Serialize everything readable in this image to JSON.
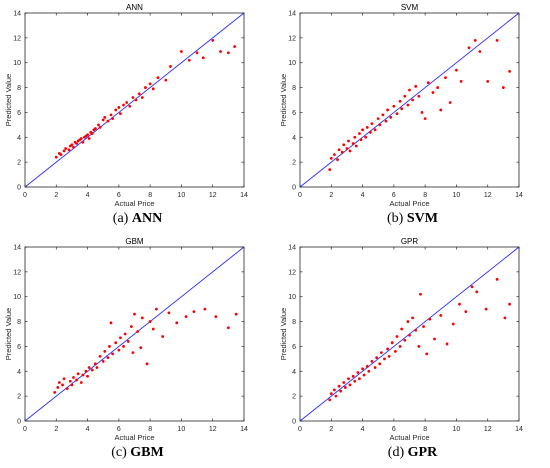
{
  "colors": {
    "points": "#ff0000",
    "diagonal": "#2b2bff",
    "axis": "#262626"
  },
  "chart_data": [
    {
      "type": "scatter",
      "title": "ANN",
      "caption_label": "(a)",
      "caption_name": "ANN",
      "xlabel": "Actual Price",
      "ylabel": "Predicted Value",
      "xlim": [
        0,
        14
      ],
      "ylim": [
        0,
        14
      ],
      "xticks": [
        "0",
        "2",
        "4",
        "6",
        "8",
        "10",
        "12",
        "14"
      ],
      "yticks": [
        "0",
        "2",
        "4",
        "6",
        "8",
        "10",
        "12",
        "14"
      ],
      "reference_line": [
        [
          0,
          0
        ],
        [
          14,
          14
        ]
      ],
      "points": [
        [
          2.0,
          2.4
        ],
        [
          2.2,
          2.7
        ],
        [
          2.3,
          2.6
        ],
        [
          2.5,
          2.9
        ],
        [
          2.6,
          3.1
        ],
        [
          2.8,
          3.0
        ],
        [
          2.9,
          3.3
        ],
        [
          3.0,
          3.4
        ],
        [
          3.1,
          3.2
        ],
        [
          3.2,
          3.6
        ],
        [
          3.3,
          3.5
        ],
        [
          3.4,
          3.7
        ],
        [
          3.5,
          3.8
        ],
        [
          3.6,
          3.9
        ],
        [
          3.7,
          3.6
        ],
        [
          3.8,
          4.0
        ],
        [
          3.9,
          4.1
        ],
        [
          4.0,
          4.2
        ],
        [
          4.1,
          3.9
        ],
        [
          4.2,
          4.4
        ],
        [
          4.3,
          4.3
        ],
        [
          4.4,
          4.6
        ],
        [
          4.5,
          4.7
        ],
        [
          4.7,
          5.0
        ],
        [
          4.8,
          4.8
        ],
        [
          5.0,
          5.4
        ],
        [
          5.1,
          5.6
        ],
        [
          5.3,
          5.3
        ],
        [
          5.5,
          5.8
        ],
        [
          5.6,
          5.5
        ],
        [
          5.8,
          6.2
        ],
        [
          6.0,
          6.4
        ],
        [
          6.1,
          5.9
        ],
        [
          6.3,
          6.6
        ],
        [
          6.5,
          6.8
        ],
        [
          6.7,
          6.5
        ],
        [
          6.9,
          7.2
        ],
        [
          7.1,
          7.0
        ],
        [
          7.3,
          7.5
        ],
        [
          7.5,
          7.2
        ],
        [
          7.7,
          8.0
        ],
        [
          8.0,
          8.3
        ],
        [
          8.2,
          7.9
        ],
        [
          8.5,
          8.8
        ],
        [
          9.0,
          8.6
        ],
        [
          9.3,
          9.7
        ],
        [
          10.0,
          10.9
        ],
        [
          10.5,
          10.2
        ],
        [
          11.0,
          10.8
        ],
        [
          11.4,
          10.4
        ],
        [
          12.0,
          11.8
        ],
        [
          12.5,
          10.9
        ],
        [
          13.0,
          10.8
        ],
        [
          13.4,
          11.3
        ]
      ]
    },
    {
      "type": "scatter",
      "title": "SVM",
      "caption_label": "(b)",
      "caption_name": "SVM",
      "xlabel": "Actual Price",
      "ylabel": "Predicted Value",
      "xlim": [
        0,
        14
      ],
      "ylim": [
        0,
        14
      ],
      "xticks": [
        "0",
        "2",
        "4",
        "6",
        "8",
        "10",
        "12",
        "14"
      ],
      "yticks": [
        "0",
        "2",
        "4",
        "6",
        "8",
        "10",
        "12",
        "14"
      ],
      "reference_line": [
        [
          0,
          0
        ],
        [
          14,
          14
        ]
      ],
      "points": [
        [
          1.9,
          1.4
        ],
        [
          2.0,
          2.3
        ],
        [
          2.2,
          2.6
        ],
        [
          2.4,
          2.2
        ],
        [
          2.5,
          3.0
        ],
        [
          2.7,
          2.8
        ],
        [
          2.8,
          3.4
        ],
        [
          3.0,
          3.1
        ],
        [
          3.1,
          3.7
        ],
        [
          3.2,
          2.9
        ],
        [
          3.4,
          3.5
        ],
        [
          3.5,
          4.0
        ],
        [
          3.6,
          3.3
        ],
        [
          3.8,
          4.3
        ],
        [
          3.9,
          3.8
        ],
        [
          4.0,
          4.6
        ],
        [
          4.2,
          4.0
        ],
        [
          4.3,
          4.8
        ],
        [
          4.5,
          4.4
        ],
        [
          4.6,
          5.1
        ],
        [
          4.8,
          4.6
        ],
        [
          5.0,
          5.5
        ],
        [
          5.1,
          5.0
        ],
        [
          5.3,
          5.8
        ],
        [
          5.5,
          5.3
        ],
        [
          5.6,
          6.2
        ],
        [
          5.8,
          5.6
        ],
        [
          6.0,
          6.5
        ],
        [
          6.2,
          5.9
        ],
        [
          6.4,
          6.9
        ],
        [
          6.5,
          6.3
        ],
        [
          6.7,
          7.3
        ],
        [
          6.9,
          6.6
        ],
        [
          7.0,
          7.8
        ],
        [
          7.2,
          7.0
        ],
        [
          7.4,
          8.1
        ],
        [
          7.6,
          7.3
        ],
        [
          7.8,
          6.0
        ],
        [
          8.0,
          5.5
        ],
        [
          8.2,
          8.4
        ],
        [
          8.5,
          7.6
        ],
        [
          8.8,
          8.0
        ],
        [
          9.0,
          6.2
        ],
        [
          9.3,
          8.8
        ],
        [
          9.6,
          6.8
        ],
        [
          10.0,
          9.4
        ],
        [
          10.3,
          8.5
        ],
        [
          10.8,
          11.2
        ],
        [
          11.2,
          11.8
        ],
        [
          11.5,
          10.9
        ],
        [
          12.0,
          8.5
        ],
        [
          12.6,
          11.8
        ],
        [
          13.0,
          8.0
        ],
        [
          13.4,
          9.3
        ]
      ]
    },
    {
      "type": "scatter",
      "title": "GBM",
      "caption_label": "(c)",
      "caption_name": "GBM",
      "xlabel": "Actual Price",
      "ylabel": "Predicted Value",
      "xlim": [
        0,
        14
      ],
      "ylim": [
        0,
        14
      ],
      "xticks": [
        "0",
        "2",
        "4",
        "6",
        "8",
        "10",
        "12",
        "14"
      ],
      "yticks": [
        "0",
        "2",
        "4",
        "6",
        "8",
        "10",
        "12",
        "14"
      ],
      "reference_line": [
        [
          0,
          0
        ],
        [
          14,
          14
        ]
      ],
      "points": [
        [
          1.9,
          2.3
        ],
        [
          2.1,
          2.7
        ],
        [
          2.2,
          3.1
        ],
        [
          2.4,
          2.9
        ],
        [
          2.5,
          3.4
        ],
        [
          2.7,
          2.6
        ],
        [
          2.9,
          3.2
        ],
        [
          3.0,
          2.9
        ],
        [
          3.1,
          3.5
        ],
        [
          3.3,
          3.3
        ],
        [
          3.4,
          3.8
        ],
        [
          3.6,
          3.1
        ],
        [
          3.7,
          3.7
        ],
        [
          3.9,
          4.0
        ],
        [
          4.0,
          3.6
        ],
        [
          4.1,
          4.3
        ],
        [
          4.3,
          4.1
        ],
        [
          4.5,
          4.6
        ],
        [
          4.6,
          4.3
        ],
        [
          4.8,
          5.2
        ],
        [
          5.0,
          4.8
        ],
        [
          5.1,
          5.6
        ],
        [
          5.3,
          5.1
        ],
        [
          5.4,
          6.0
        ],
        [
          5.5,
          7.9
        ],
        [
          5.6,
          5.4
        ],
        [
          5.8,
          6.3
        ],
        [
          6.0,
          5.7
        ],
        [
          6.1,
          6.7
        ],
        [
          6.3,
          6.0
        ],
        [
          6.4,
          7.0
        ],
        [
          6.6,
          6.4
        ],
        [
          6.8,
          7.6
        ],
        [
          6.9,
          5.5
        ],
        [
          7.0,
          8.6
        ],
        [
          7.2,
          7.2
        ],
        [
          7.4,
          5.9
        ],
        [
          7.5,
          8.3
        ],
        [
          7.8,
          4.6
        ],
        [
          8.0,
          8.0
        ],
        [
          8.2,
          7.4
        ],
        [
          8.4,
          9.0
        ],
        [
          8.8,
          6.8
        ],
        [
          9.2,
          8.7
        ],
        [
          9.7,
          7.9
        ],
        [
          10.3,
          8.4
        ],
        [
          10.8,
          8.8
        ],
        [
          11.5,
          9.0
        ],
        [
          12.2,
          8.4
        ],
        [
          13.0,
          7.5
        ],
        [
          13.5,
          8.6
        ]
      ]
    },
    {
      "type": "scatter",
      "title": "GPR",
      "caption_label": "(d)",
      "caption_name": "GPR",
      "xlabel": "Actual Price",
      "ylabel": "Predicted Value",
      "xlim": [
        0,
        14
      ],
      "ylim": [
        0,
        14
      ],
      "xticks": [
        "0",
        "2",
        "4",
        "6",
        "8",
        "10",
        "12",
        "14"
      ],
      "yticks": [
        "0",
        "2",
        "4",
        "6",
        "8",
        "10",
        "12",
        "14"
      ],
      "reference_line": [
        [
          0,
          0
        ],
        [
          14,
          14
        ]
      ],
      "points": [
        [
          1.9,
          1.7
        ],
        [
          2.0,
          2.2
        ],
        [
          2.2,
          2.5
        ],
        [
          2.3,
          2.0
        ],
        [
          2.5,
          2.8
        ],
        [
          2.6,
          2.4
        ],
        [
          2.8,
          3.1
        ],
        [
          2.9,
          2.7
        ],
        [
          3.1,
          3.4
        ],
        [
          3.2,
          2.9
        ],
        [
          3.4,
          3.6
        ],
        [
          3.5,
          3.2
        ],
        [
          3.7,
          3.9
        ],
        [
          3.8,
          3.4
        ],
        [
          4.0,
          4.2
        ],
        [
          4.1,
          3.7
        ],
        [
          4.3,
          4.4
        ],
        [
          4.4,
          4.0
        ],
        [
          4.6,
          4.8
        ],
        [
          4.8,
          4.3
        ],
        [
          4.9,
          5.1
        ],
        [
          5.1,
          4.6
        ],
        [
          5.2,
          5.5
        ],
        [
          5.4,
          5.0
        ],
        [
          5.6,
          5.8
        ],
        [
          5.7,
          5.2
        ],
        [
          5.9,
          6.3
        ],
        [
          6.1,
          5.6
        ],
        [
          6.2,
          6.8
        ],
        [
          6.4,
          6.0
        ],
        [
          6.5,
          7.4
        ],
        [
          6.7,
          6.5
        ],
        [
          6.9,
          8.0
        ],
        [
          7.0,
          6.9
        ],
        [
          7.2,
          8.3
        ],
        [
          7.4,
          7.3
        ],
        [
          7.6,
          6.0
        ],
        [
          7.7,
          10.2
        ],
        [
          7.9,
          7.6
        ],
        [
          8.1,
          5.4
        ],
        [
          8.3,
          8.2
        ],
        [
          8.6,
          6.6
        ],
        [
          9.0,
          8.5
        ],
        [
          9.4,
          6.2
        ],
        [
          9.8,
          7.8
        ],
        [
          10.2,
          9.4
        ],
        [
          10.6,
          8.8
        ],
        [
          11.0,
          10.8
        ],
        [
          11.3,
          10.4
        ],
        [
          11.9,
          9.0
        ],
        [
          12.6,
          11.4
        ],
        [
          13.1,
          8.3
        ],
        [
          13.4,
          9.4
        ]
      ]
    }
  ]
}
